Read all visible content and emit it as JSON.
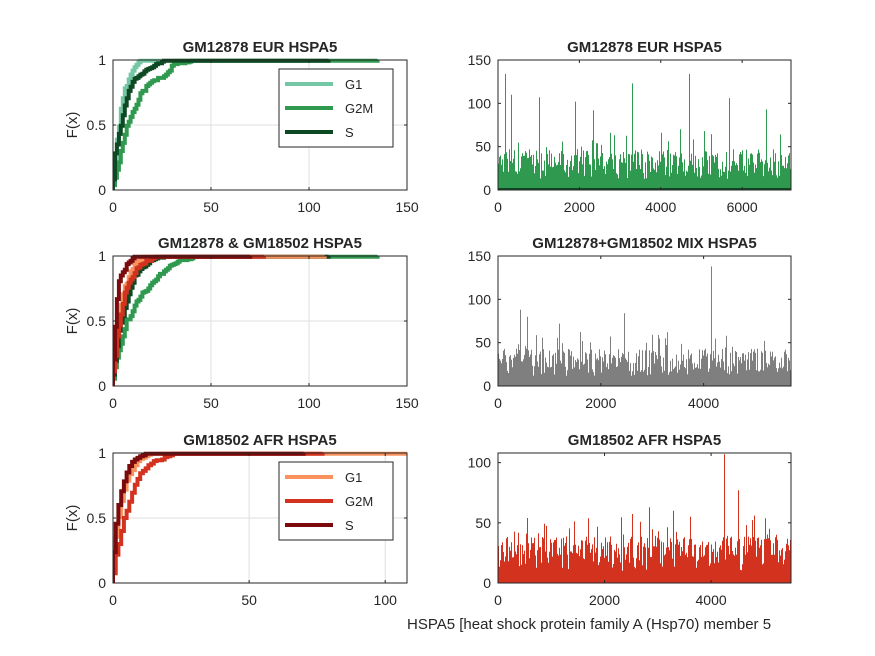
{
  "colors": {
    "eur_g1": "#74c7a4",
    "eur_g2m": "#2f9a4f",
    "eur_s": "#0d4a23",
    "afr_g1": "#f9925c",
    "afr_g2m": "#d3321f",
    "afr_s": "#7a0a0c",
    "mix": "#7f7f7f",
    "axis": "#262626",
    "grid": "#dfdfdf"
  },
  "figure_xlabel": "HSPA5 [heat shock protein family A (Hsp70) member 5",
  "chart_data": [
    {
      "id": "cdf_eur",
      "type": "line",
      "kind": "ecdf",
      "title": "GM12878 EUR HSPA5",
      "ylabel": "F(x)",
      "xlim": [
        0,
        150
      ],
      "ylim": [
        0,
        1
      ],
      "xticks": [
        0,
        50,
        100,
        150
      ],
      "yticks": [
        0,
        0.5,
        1
      ],
      "yticklabels": [
        "0",
        "0.5",
        "1"
      ],
      "grid": true,
      "legend": {
        "position": "top-right",
        "entries": [
          "G1",
          "G2M",
          "S"
        ]
      },
      "series": [
        {
          "name": "G1",
          "color_key": "eur_g1",
          "scale": 5,
          "max": 97
        },
        {
          "name": "G2M",
          "color_key": "eur_g2m",
          "scale": 12,
          "max": 135
        },
        {
          "name": "S",
          "color_key": "eur_s",
          "scale": 7,
          "max": 110
        }
      ]
    },
    {
      "id": "bar_eur",
      "type": "bar",
      "title": "GM12878 EUR HSPA5",
      "color_key": "eur_g2m",
      "n": 7200,
      "xlim": [
        0,
        7200
      ],
      "ylim": [
        0,
        150
      ],
      "xticks": [
        0,
        2000,
        4000,
        6000
      ],
      "yticks": [
        0,
        50,
        100,
        150
      ],
      "typical_level": 22,
      "peaks": [
        [
          180,
          134
        ],
        [
          330,
          110
        ],
        [
          1000,
          107
        ],
        [
          1900,
          102
        ],
        [
          2350,
          92
        ],
        [
          3300,
          123
        ],
        [
          4700,
          134
        ],
        [
          5700,
          106
        ],
        [
          6600,
          93
        ],
        [
          6950,
          64
        ]
      ]
    },
    {
      "id": "cdf_mix",
      "type": "line",
      "kind": "ecdf",
      "title": "GM12878 & GM18502 HSPA5",
      "ylabel": "F(x)",
      "xlim": [
        0,
        150
      ],
      "ylim": [
        0,
        1
      ],
      "xticks": [
        0,
        50,
        100,
        150
      ],
      "yticks": [
        0,
        0.5,
        1
      ],
      "yticklabels": [
        "0",
        "0.5",
        "1"
      ],
      "grid": true,
      "series": [
        {
          "name": "G2M",
          "color_key": "eur_g2m",
          "scale": 12,
          "max": 135
        },
        {
          "name": "S",
          "color_key": "eur_s",
          "scale": 7,
          "max": 110
        },
        {
          "name": "G1",
          "color_key": "afr_g1",
          "scale": 4,
          "max": 108
        },
        {
          "name": "G2M",
          "color_key": "afr_g2m",
          "scale": 6,
          "max": 77
        },
        {
          "name": "S",
          "color_key": "afr_s",
          "scale": 3,
          "max": 70
        }
      ]
    },
    {
      "id": "bar_mix",
      "type": "bar",
      "title": "GM12878+GM18502 MIX HSPA5",
      "color_key": "mix",
      "n": 5700,
      "xlim": [
        0,
        5700
      ],
      "ylim": [
        0,
        150
      ],
      "xticks": [
        0,
        2000,
        4000
      ],
      "yticks": [
        0,
        50,
        100,
        150
      ],
      "typical_level": 20,
      "peaks": [
        [
          420,
          88
        ],
        [
          560,
          80
        ],
        [
          1200,
          72
        ],
        [
          2450,
          84
        ],
        [
          3300,
          62
        ],
        [
          4150,
          138
        ],
        [
          4450,
          58
        ],
        [
          5200,
          52
        ]
      ]
    },
    {
      "id": "cdf_afr",
      "type": "line",
      "kind": "ecdf",
      "title": "GM18502 AFR HSPA5",
      "ylabel": "F(x)",
      "xlim": [
        0,
        108
      ],
      "ylim": [
        0,
        1
      ],
      "xticks": [
        0,
        50,
        100
      ],
      "yticks": [
        0,
        0.5,
        1
      ],
      "yticklabels": [
        "0",
        "0.5",
        "1"
      ],
      "grid": true,
      "legend": {
        "position": "top-right",
        "entries": [
          "G1",
          "G2M",
          "S"
        ]
      },
      "series": [
        {
          "name": "G1",
          "color_key": "afr_g1",
          "scale": 4,
          "max": 108
        },
        {
          "name": "G2M",
          "color_key": "afr_g2m",
          "scale": 6,
          "max": 77
        },
        {
          "name": "S",
          "color_key": "afr_s",
          "scale": 3,
          "max": 70
        }
      ]
    },
    {
      "id": "bar_afr",
      "type": "bar",
      "title": "GM18502 AFR HSPA5",
      "color_key": "afr_g2m",
      "n": 5500,
      "xlim": [
        0,
        5500
      ],
      "ylim": [
        0,
        108
      ],
      "xticks": [
        0,
        2000,
        4000
      ],
      "yticks": [
        0,
        50,
        100
      ],
      "typical_level": 18,
      "peaks": [
        [
          540,
          54
        ],
        [
          2850,
          63
        ],
        [
          3300,
          60
        ],
        [
          3620,
          55
        ],
        [
          4250,
          107
        ],
        [
          4520,
          77
        ],
        [
          5100,
          45
        ]
      ]
    }
  ]
}
